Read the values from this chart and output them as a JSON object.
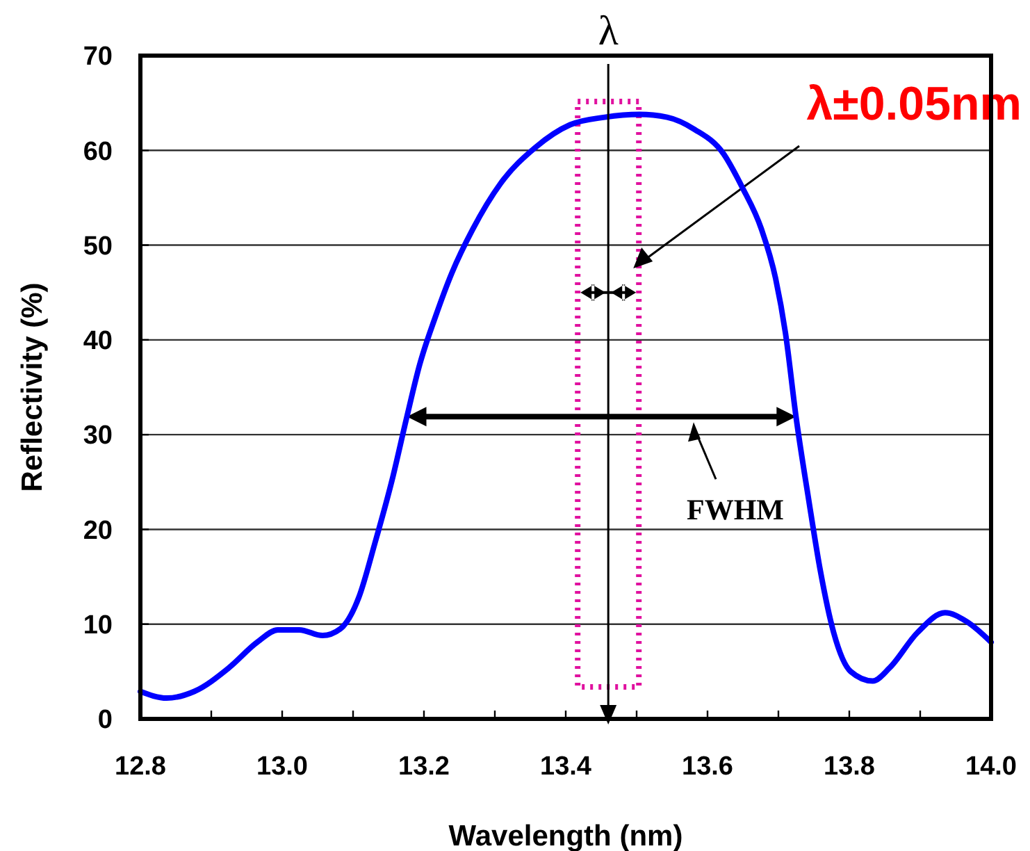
{
  "chart_data": {
    "type": "line",
    "xlabel": "Wavelength (nm)",
    "ylabel": "Reflectivity (%)",
    "x": [
      12.8,
      12.837,
      12.876,
      12.925,
      12.965,
      12.994,
      13.024,
      13.057,
      13.082,
      13.108,
      13.131,
      13.155,
      13.175,
      13.194,
      13.216,
      13.239,
      13.269,
      13.308,
      13.357,
      13.406,
      13.455,
      13.504,
      13.543,
      13.582,
      13.622,
      13.649,
      13.676,
      13.696,
      13.71,
      13.725,
      13.743,
      13.759,
      13.778,
      13.802,
      13.833,
      13.857,
      13.896,
      13.935,
      13.965,
      14.0
    ],
    "series": [
      {
        "color": "#0000ff",
        "values": [
          2.9,
          2.2,
          2.9,
          5.4,
          8.1,
          9.4,
          9.4,
          8.8,
          9.5,
          12.8,
          18.6,
          25.2,
          31.6,
          37.4,
          42.4,
          47,
          51.7,
          56.5,
          60.3,
          62.7,
          63.5,
          63.8,
          63.5,
          62.2,
          59.7,
          56.1,
          51.7,
          46.5,
          40.7,
          31.8,
          23,
          15.7,
          9.1,
          5,
          4,
          5.4,
          9.1,
          11.2,
          10.3,
          8.1
        ]
      }
    ],
    "xlim": [
      12.8,
      14.0
    ],
    "xticks": [
      12.8,
      {
        "value": 12.9,
        "label": null
      },
      "13.0",
      {
        "value": 13.1,
        "label": null
      },
      13.2,
      {
        "value": 13.3,
        "label": null
      },
      13.4,
      {
        "value": 13.5,
        "label": null
      },
      13.6,
      {
        "value": 13.7,
        "label": null
      },
      13.8,
      {
        "value": 13.9,
        "label": null
      },
      "14.0"
    ],
    "ylim": [
      0,
      70
    ],
    "yticks": [
      0,
      10,
      20,
      30,
      40,
      50,
      60,
      70
    ],
    "grid": "y",
    "marker": "none",
    "line_style": "solid",
    "ref_lines": [
      {
        "axis": "x",
        "value": 13.46,
        "label": "λ"
      }
    ],
    "annotations": [
      "λ±0.05nm",
      "FWHM"
    ]
  }
}
